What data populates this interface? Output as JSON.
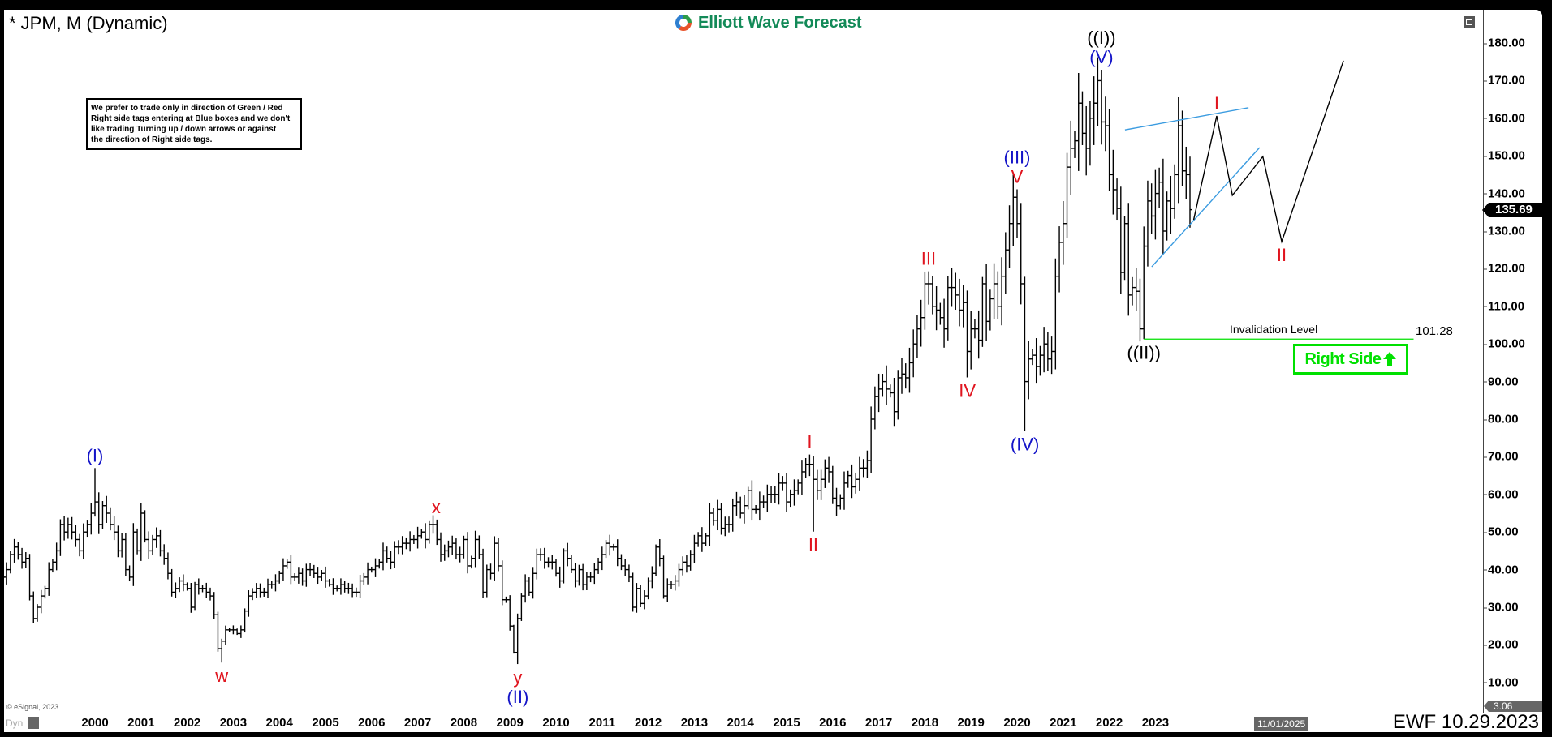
{
  "header": {
    "title": "* JPM, M (Dynamic)",
    "logo_text": "Elliott Wave Forecast"
  },
  "notice": "We prefer to trade only in direction of Green / Red\nRight side tags entering at Blue boxes and we don't\nlike trading Turning up / down arrows or against\nthe direction of Right side tags.",
  "footer": {
    "copyright": "© eSignal, 2023",
    "dyn_label": "Dyn",
    "cursor_date": "11/01/2025",
    "stamp": "EWF 10.29.2023"
  },
  "colors": {
    "blue": "#1414c8",
    "red": "#e0141e",
    "green": "#00e000",
    "trendline": "#3a9be0"
  },
  "icons": [
    "logo-icon",
    "restore-window-icon",
    "lock-icon",
    "arrow-up-icon"
  ],
  "chart_data": {
    "type": "ohlc-bar",
    "symbol": "JPM",
    "interval": "Monthly",
    "start": "1998-01",
    "yaxis": {
      "ticks": [
        "180.00",
        "170.00",
        "160.00",
        "150.00",
        "140.00",
        "130.00",
        "120.00",
        "110.00",
        "100.00",
        "90.00",
        "80.00",
        "70.00",
        "60.00",
        "50.00",
        "40.00",
        "30.00",
        "20.00",
        "10.00"
      ],
      "last_price": "135.69",
      "min_label": "3.06"
    },
    "xaxis": {
      "ticks": [
        "2000",
        "2001",
        "2002",
        "2003",
        "2004",
        "2005",
        "2006",
        "2007",
        "2008",
        "2009",
        "2010",
        "2011",
        "2012",
        "2013",
        "2014",
        "2015",
        "2016",
        "2017",
        "2018",
        "2019",
        "2020",
        "2021",
        "2022",
        "2023"
      ]
    },
    "monthly_closes": {
      "1998": [
        38,
        40,
        44,
        46,
        44,
        42,
        43,
        33,
        27,
        30,
        33,
        35
      ],
      "1999": [
        40,
        42,
        45,
        52,
        50,
        52,
        50,
        48,
        45,
        50,
        52,
        55
      ],
      "2000": [
        58,
        52,
        57,
        55,
        52,
        50,
        45,
        48,
        40,
        38,
        50,
        45
      ],
      "2001": [
        55,
        48,
        45,
        48,
        49,
        45,
        43,
        39,
        34,
        35,
        37,
        36
      ],
      "2002": [
        35,
        30,
        36,
        35,
        35,
        34,
        33,
        28,
        19,
        21,
        24,
        24
      ],
      "2003": [
        24,
        23,
        24,
        29,
        33,
        34,
        35,
        34,
        34,
        36,
        36,
        37
      ],
      "2004": [
        39,
        41,
        42,
        38,
        38,
        39,
        37,
        40,
        40,
        39,
        38,
        39
      ],
      "2005": [
        37,
        36,
        35,
        35,
        36,
        35,
        35,
        34,
        34,
        37,
        38,
        40
      ],
      "2006": [
        40,
        41,
        42,
        45,
        43,
        42,
        46,
        46,
        47,
        47,
        48,
        48
      ],
      "2007": [
        49,
        50,
        48,
        52,
        52,
        48,
        44,
        45,
        46,
        47,
        44,
        44
      ],
      "2008": [
        48,
        41,
        43,
        48,
        44,
        34,
        40,
        39,
        47,
        41,
        32,
        32
      ],
      "2009": [
        25,
        18,
        27,
        33,
        37,
        34,
        39,
        44,
        44,
        42,
        42,
        42
      ],
      "2010": [
        39,
        37,
        45,
        43,
        40,
        37,
        40,
        36,
        38,
        38,
        40,
        42
      ],
      "2011": [
        44,
        47,
        46,
        46,
        43,
        41,
        40,
        38,
        30,
        35,
        31,
        33
      ],
      "2012": [
        37,
        39,
        46,
        43,
        33,
        36,
        36,
        37,
        40,
        42,
        41,
        44
      ],
      "2013": [
        47,
        49,
        47,
        49,
        55,
        53,
        56,
        51,
        52,
        52,
        57,
        58
      ],
      "2014": [
        55,
        57,
        61,
        56,
        56,
        58,
        58,
        60,
        60,
        60,
        63,
        63
      ],
      "2015": [
        58,
        60,
        61,
        63,
        66,
        68,
        68,
        64,
        61,
        64,
        67,
        66
      ],
      "2016": [
        59,
        57,
        59,
        63,
        65,
        62,
        64,
        67,
        67,
        69,
        80,
        86
      ],
      "2017": [
        88,
        90,
        88,
        87,
        82,
        91,
        92,
        91,
        95,
        100,
        104,
        107
      ],
      "2018": [
        116,
        116,
        110,
        109,
        107,
        104,
        115,
        115,
        113,
        109,
        111,
        98
      ],
      "2019": [
        104,
        104,
        101,
        116,
        106,
        112,
        116,
        110,
        118,
        125,
        132,
        139
      ],
      "2020": [
        132,
        116,
        90,
        96,
        97,
        94,
        97,
        100,
        96,
        98,
        118,
        127
      ],
      "2021": [
        132,
        147,
        152,
        154,
        164,
        156,
        152,
        160,
        164,
        170,
        159,
        158
      ],
      "2022": [
        145,
        141,
        136,
        119,
        132,
        113,
        115,
        114,
        104,
        126,
        138,
        134
      ],
      "2023": [
        140,
        143,
        130,
        138,
        136,
        145,
        158,
        146,
        145,
        135.69
      ]
    },
    "wave_labels": [
      {
        "date": 2000.0,
        "price": 67.0,
        "kind": "high",
        "labels": [
          {
            "text": "(I)",
            "color": "blue"
          }
        ]
      },
      {
        "date": 2002.75,
        "price": 15.3,
        "kind": "low",
        "labels": [
          {
            "text": "w",
            "color": "red"
          }
        ]
      },
      {
        "date": 2007.4,
        "price": 53.3,
        "kind": "high",
        "labels": [
          {
            "text": "x",
            "color": "red"
          }
        ]
      },
      {
        "date": 2009.17,
        "price": 14.9,
        "kind": "low",
        "labels": [
          {
            "text": "y",
            "color": "red"
          },
          {
            "text": "(II)",
            "color": "blue"
          }
        ]
      },
      {
        "date": 2015.5,
        "price": 70.6,
        "kind": "high",
        "labels": [
          {
            "text": "I",
            "color": "red"
          }
        ]
      },
      {
        "date": 2015.58,
        "price": 50.1,
        "kind": "low",
        "labels": [
          {
            "text": "II",
            "color": "red"
          }
        ]
      },
      {
        "date": 2018.08,
        "price": 119.3,
        "kind": "high",
        "labels": [
          {
            "text": "III",
            "color": "red"
          }
        ]
      },
      {
        "date": 2018.92,
        "price": 91.1,
        "kind": "low",
        "labels": [
          {
            "text": "IV",
            "color": "red"
          }
        ]
      },
      {
        "date": 2020.0,
        "price": 141.1,
        "kind": "high",
        "labels": [
          {
            "text": "V",
            "color": "red"
          },
          {
            "text": "(III)",
            "color": "blue"
          }
        ]
      },
      {
        "date": 2020.17,
        "price": 76.9,
        "kind": "low",
        "labels": [
          {
            "text": "(IV)",
            "color": "blue"
          }
        ]
      },
      {
        "date": 2021.83,
        "price": 172.9,
        "kind": "high",
        "labels": [
          {
            "text": "(V)",
            "color": "blue"
          },
          {
            "text": "((I))",
            "color": "black"
          }
        ]
      },
      {
        "date": 2022.75,
        "price": 101.28,
        "kind": "low",
        "labels": [
          {
            "text": "((II))",
            "color": "black"
          }
        ]
      },
      {
        "date": 2024.33,
        "price": 160.6,
        "kind": "projection",
        "labels": [
          {
            "text": "I",
            "color": "red"
          }
        ]
      },
      {
        "date": 2025.74,
        "price": 127.2,
        "kind": "projection-low",
        "labels": [
          {
            "text": "II",
            "color": "red"
          }
        ]
      }
    ],
    "projection_path": [
      [
        2023.83,
        133.0
      ],
      [
        2024.33,
        160.6
      ],
      [
        2024.67,
        139.5
      ],
      [
        2025.33,
        149.8
      ],
      [
        2025.74,
        127.2
      ],
      [
        2027.08,
        175.3
      ]
    ],
    "trendlines": [
      [
        [
          2022.34,
          156.9
        ],
        [
          2025.02,
          162.8
        ]
      ],
      [
        [
          2022.92,
          120.5
        ],
        [
          2025.26,
          152.2
        ]
      ]
    ],
    "invalidation": {
      "label": "Invalidation Level",
      "value": "101.28",
      "price": 101.28,
      "from": 2022.75,
      "to": 2028.6
    },
    "right_side_tag": {
      "text": "Right Side",
      "direction": "up"
    }
  }
}
